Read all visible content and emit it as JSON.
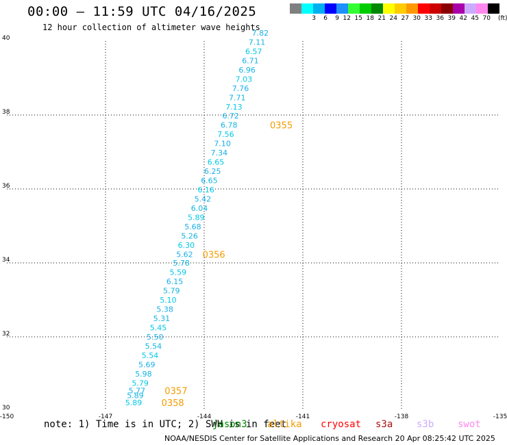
{
  "header": {
    "title": "00:00 — 11:59 UTC 04/16/2025",
    "subtitle": "12 hour collection of altimeter wave heights"
  },
  "colorbar": {
    "unit": "(ft)",
    "entries": [
      {
        "label": "",
        "color": "#808080"
      },
      {
        "label": "3",
        "color": "#00ffff"
      },
      {
        "label": "6",
        "color": "#00b0f0"
      },
      {
        "label": "9",
        "color": "#0000ff"
      },
      {
        "label": "12",
        "color": "#1e90ff"
      },
      {
        "label": "15",
        "color": "#33ff33"
      },
      {
        "label": "18",
        "color": "#00cc00"
      },
      {
        "label": "21",
        "color": "#008800"
      },
      {
        "label": "24",
        "color": "#ffff00"
      },
      {
        "label": "27",
        "color": "#ffcc00"
      },
      {
        "label": "30",
        "color": "#ff9900"
      },
      {
        "label": "33",
        "color": "#ff0000"
      },
      {
        "label": "36",
        "color": "#cc0000"
      },
      {
        "label": "39",
        "color": "#880000"
      },
      {
        "label": "42",
        "color": "#aa00aa"
      },
      {
        "label": "45",
        "color": "#ccaaff"
      },
      {
        "label": "70",
        "color": "#ff88ee"
      },
      {
        "label": "",
        "color": "#000000"
      }
    ]
  },
  "chart_data": {
    "type": "scatter",
    "title": "00:00 — 11:59 UTC 04/16/2025",
    "subtitle": "12 hour collection of altimeter wave heights",
    "xlim": [
      -150,
      -135
    ],
    "ylim": [
      30,
      40
    ],
    "xticks": [
      "-150",
      "-147",
      "-144",
      "-141",
      "-138",
      "-135"
    ],
    "yticks": [
      "30",
      "32",
      "34",
      "36",
      "38",
      "40"
    ],
    "grid": true,
    "unit": "ft",
    "points": [
      {
        "lon": -146.4,
        "lat": 30.22,
        "value": "5.89"
      },
      {
        "lon": -146.35,
        "lat": 30.42,
        "value": "5.89"
      },
      {
        "lon": -146.3,
        "lat": 30.55,
        "value": "5.77"
      },
      {
        "lon": -146.2,
        "lat": 30.75,
        "value": "5.79"
      },
      {
        "lon": -146.1,
        "lat": 31.0,
        "value": "5.98"
      },
      {
        "lon": -146.0,
        "lat": 31.25,
        "value": "5.69"
      },
      {
        "lon": -145.9,
        "lat": 31.5,
        "value": "5.54"
      },
      {
        "lon": -145.8,
        "lat": 31.75,
        "value": "5.54"
      },
      {
        "lon": -145.75,
        "lat": 32.0,
        "value": "5.50"
      },
      {
        "lon": -145.65,
        "lat": 32.25,
        "value": "5.45"
      },
      {
        "lon": -145.55,
        "lat": 32.5,
        "value": "5.31"
      },
      {
        "lon": -145.45,
        "lat": 32.75,
        "value": "5.38"
      },
      {
        "lon": -145.35,
        "lat": 33.0,
        "value": "5.10"
      },
      {
        "lon": -145.25,
        "lat": 33.25,
        "value": "5.79"
      },
      {
        "lon": -145.15,
        "lat": 33.5,
        "value": "6.15"
      },
      {
        "lon": -145.05,
        "lat": 33.75,
        "value": "5.59"
      },
      {
        "lon": -144.95,
        "lat": 34.0,
        "value": "5.78"
      },
      {
        "lon": -144.85,
        "lat": 34.23,
        "value": "5.62"
      },
      {
        "lon": -144.8,
        "lat": 34.48,
        "value": "6.30"
      },
      {
        "lon": -144.7,
        "lat": 34.73,
        "value": "5.26"
      },
      {
        "lon": -144.6,
        "lat": 34.98,
        "value": "5.68"
      },
      {
        "lon": -144.5,
        "lat": 35.23,
        "value": "5.89"
      },
      {
        "lon": -144.4,
        "lat": 35.48,
        "value": "6.04"
      },
      {
        "lon": -144.3,
        "lat": 35.73,
        "value": "5.42"
      },
      {
        "lon": -144.2,
        "lat": 35.98,
        "value": "6.16"
      },
      {
        "lon": -144.1,
        "lat": 36.23,
        "value": "6.65"
      },
      {
        "lon": -144.0,
        "lat": 36.48,
        "value": "6.25"
      },
      {
        "lon": -143.9,
        "lat": 36.73,
        "value": "6.65"
      },
      {
        "lon": -143.8,
        "lat": 36.98,
        "value": "7.34"
      },
      {
        "lon": -143.7,
        "lat": 37.23,
        "value": "7.10"
      },
      {
        "lon": -143.6,
        "lat": 37.48,
        "value": "7.56"
      },
      {
        "lon": -143.5,
        "lat": 37.73,
        "value": "6.78"
      },
      {
        "lon": -143.45,
        "lat": 37.98,
        "value": "6.72"
      },
      {
        "lon": -143.35,
        "lat": 38.22,
        "value": "7.13"
      },
      {
        "lon": -143.25,
        "lat": 38.47,
        "value": "7.71"
      },
      {
        "lon": -143.15,
        "lat": 38.72,
        "value": "7.76"
      },
      {
        "lon": -143.05,
        "lat": 38.97,
        "value": "7.03"
      },
      {
        "lon": -142.95,
        "lat": 39.22,
        "value": "6.96"
      },
      {
        "lon": -142.85,
        "lat": 39.47,
        "value": "6.71"
      },
      {
        "lon": -142.75,
        "lat": 39.72,
        "value": "6.57"
      },
      {
        "lon": -142.65,
        "lat": 39.97,
        "value": "7.11"
      },
      {
        "lon": -142.55,
        "lat": 40.22,
        "value": "7.82"
      }
    ],
    "pass_labels": [
      {
        "text": "0355",
        "lon": -142.0,
        "lat": 37.73
      },
      {
        "text": "0356",
        "lon": -144.05,
        "lat": 34.23
      },
      {
        "text": "0357",
        "lon": -145.2,
        "lat": 30.55
      },
      {
        "text": "0358",
        "lon": -145.3,
        "lat": 30.22
      }
    ]
  },
  "note": "note: 1) Time is in UTC; 2) SWH is in feet",
  "satellites": [
    {
      "name": "jason3",
      "color": "#008800"
    },
    {
      "name": "altika",
      "color": "#f39b00"
    },
    {
      "name": "cryosat",
      "color": "#ff0000"
    },
    {
      "name": "s3a",
      "color": "#aa1111"
    },
    {
      "name": "s3b",
      "color": "#ccaaff"
    },
    {
      "name": "swot",
      "color": "#ff88ee"
    }
  ],
  "footer": "NOAA/NESDIS Center for Satellite Applications and Research    20 Apr 08:25:42 UTC 2025"
}
